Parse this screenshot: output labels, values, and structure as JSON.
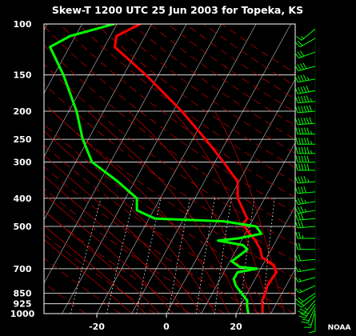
{
  "chart_data": {
    "type": "skew-t",
    "title": "Skew-T 1200 UTC  25 Jun 2003 for Topeka, KS",
    "credit": "NOAA",
    "y_scale": "log-pressure",
    "ylim_hpa": [
      1000,
      100
    ],
    "xlim_c": [
      -30,
      35
    ],
    "pressure_ticks": [
      100,
      150,
      200,
      250,
      300,
      400,
      500,
      700,
      850,
      925,
      1000
    ],
    "temperature_ticks": [
      -20,
      0,
      20
    ],
    "colors": {
      "background": "#000000",
      "temperature": "#ff0000",
      "dewpoint": "#00ff00",
      "isobar": "#ffffff",
      "isotherm": "#ffffff",
      "dry_adiabat": "#cc0000",
      "moist_adiabat": "#cc0000",
      "mixing_ratio": "#ffffff",
      "wind_barb": "#00ff00"
    },
    "series": [
      {
        "key": "temperature",
        "color": "#ff0000",
        "points": [
          {
            "p": 990,
            "t": 27.4
          },
          {
            "p": 950,
            "t": 26.6
          },
          {
            "p": 900,
            "t": 25.4
          },
          {
            "p": 850,
            "t": 25.2
          },
          {
            "p": 800,
            "t": 24.6
          },
          {
            "p": 760,
            "t": 24.8
          },
          {
            "p": 720,
            "t": 25.1
          },
          {
            "p": 680,
            "t": 23.2
          },
          {
            "p": 640,
            "t": 18.6
          },
          {
            "p": 600,
            "t": 16.8
          },
          {
            "p": 560,
            "t": 14.1
          },
          {
            "p": 520,
            "t": 10.4
          },
          {
            "p": 490,
            "t": 7.8
          },
          {
            "p": 470,
            "t": 8.2
          },
          {
            "p": 440,
            "t": 5.8
          },
          {
            "p": 400,
            "t": 2.3
          },
          {
            "p": 350,
            "t": -0.4
          },
          {
            "p": 300,
            "t": -7.5
          },
          {
            "p": 250,
            "t": -16.3
          },
          {
            "p": 200,
            "t": -27.6
          },
          {
            "p": 150,
            "t": -43.6
          },
          {
            "p": 120,
            "t": -57.0
          },
          {
            "p": 110,
            "t": -58.2
          },
          {
            "p": 100,
            "t": -53.3
          }
        ]
      },
      {
        "key": "dewpoint",
        "color": "#00ff00",
        "points": [
          {
            "p": 990,
            "t": 23.3
          },
          {
            "p": 950,
            "t": 22.2
          },
          {
            "p": 900,
            "t": 21.1
          },
          {
            "p": 850,
            "t": 18.3
          },
          {
            "p": 800,
            "t": 15.5
          },
          {
            "p": 760,
            "t": 13.9
          },
          {
            "p": 720,
            "t": 13.9
          },
          {
            "p": 700,
            "t": 18.9
          },
          {
            "p": 690,
            "t": 13.7
          },
          {
            "p": 660,
            "t": 10.5
          },
          {
            "p": 630,
            "t": 11.8
          },
          {
            "p": 600,
            "t": 13.1
          },
          {
            "p": 580,
            "t": 11.2
          },
          {
            "p": 560,
            "t": 3.3
          },
          {
            "p": 550,
            "t": 8.7
          },
          {
            "p": 530,
            "t": 14.7
          },
          {
            "p": 500,
            "t": 12.0
          },
          {
            "p": 480,
            "t": 1.9
          },
          {
            "p": 470,
            "t": -18.3
          },
          {
            "p": 440,
            "t": -24.8
          },
          {
            "p": 400,
            "t": -26.7
          },
          {
            "p": 350,
            "t": -34.8
          },
          {
            "p": 300,
            "t": -45.3
          },
          {
            "p": 250,
            "t": -51.6
          },
          {
            "p": 200,
            "t": -57.8
          },
          {
            "p": 150,
            "t": -67.3
          },
          {
            "p": 120,
            "t": -75.6
          },
          {
            "p": 110,
            "t": -71.5
          },
          {
            "p": 100,
            "t": -60.9
          }
        ]
      }
    ],
    "wind_barbs": [
      {
        "p": 1000,
        "dir": 180,
        "kt": 10
      },
      {
        "p": 975,
        "dir": 195,
        "kt": 15
      },
      {
        "p": 950,
        "dir": 205,
        "kt": 20
      },
      {
        "p": 925,
        "dir": 215,
        "kt": 25
      },
      {
        "p": 900,
        "dir": 220,
        "kt": 25
      },
      {
        "p": 870,
        "dir": 230,
        "kt": 20
      },
      {
        "p": 850,
        "dir": 235,
        "kt": 20
      },
      {
        "p": 800,
        "dir": 245,
        "kt": 15
      },
      {
        "p": 750,
        "dir": 255,
        "kt": 15
      },
      {
        "p": 700,
        "dir": 260,
        "kt": 15
      },
      {
        "p": 650,
        "dir": 265,
        "kt": 20
      },
      {
        "p": 600,
        "dir": 270,
        "kt": 20
      },
      {
        "p": 550,
        "dir": 270,
        "kt": 25
      },
      {
        "p": 500,
        "dir": 265,
        "kt": 30
      },
      {
        "p": 470,
        "dir": 265,
        "kt": 30
      },
      {
        "p": 440,
        "dir": 260,
        "kt": 35
      },
      {
        "p": 410,
        "dir": 260,
        "kt": 35
      },
      {
        "p": 380,
        "dir": 265,
        "kt": 40
      },
      {
        "p": 350,
        "dir": 265,
        "kt": 45
      },
      {
        "p": 320,
        "dir": 270,
        "kt": 50
      },
      {
        "p": 300,
        "dir": 270,
        "kt": 50
      },
      {
        "p": 280,
        "dir": 270,
        "kt": 55
      },
      {
        "p": 260,
        "dir": 270,
        "kt": 55
      },
      {
        "p": 240,
        "dir": 270,
        "kt": 55
      },
      {
        "p": 220,
        "dir": 265,
        "kt": 60
      },
      {
        "p": 200,
        "dir": 265,
        "kt": 60
      },
      {
        "p": 185,
        "dir": 265,
        "kt": 55
      },
      {
        "p": 170,
        "dir": 260,
        "kt": 50
      },
      {
        "p": 155,
        "dir": 260,
        "kt": 45
      },
      {
        "p": 140,
        "dir": 255,
        "kt": 40
      },
      {
        "p": 125,
        "dir": 250,
        "kt": 30
      },
      {
        "p": 112,
        "dir": 240,
        "kt": 20
      },
      {
        "p": 104,
        "dir": 230,
        "kt": 15
      }
    ]
  }
}
